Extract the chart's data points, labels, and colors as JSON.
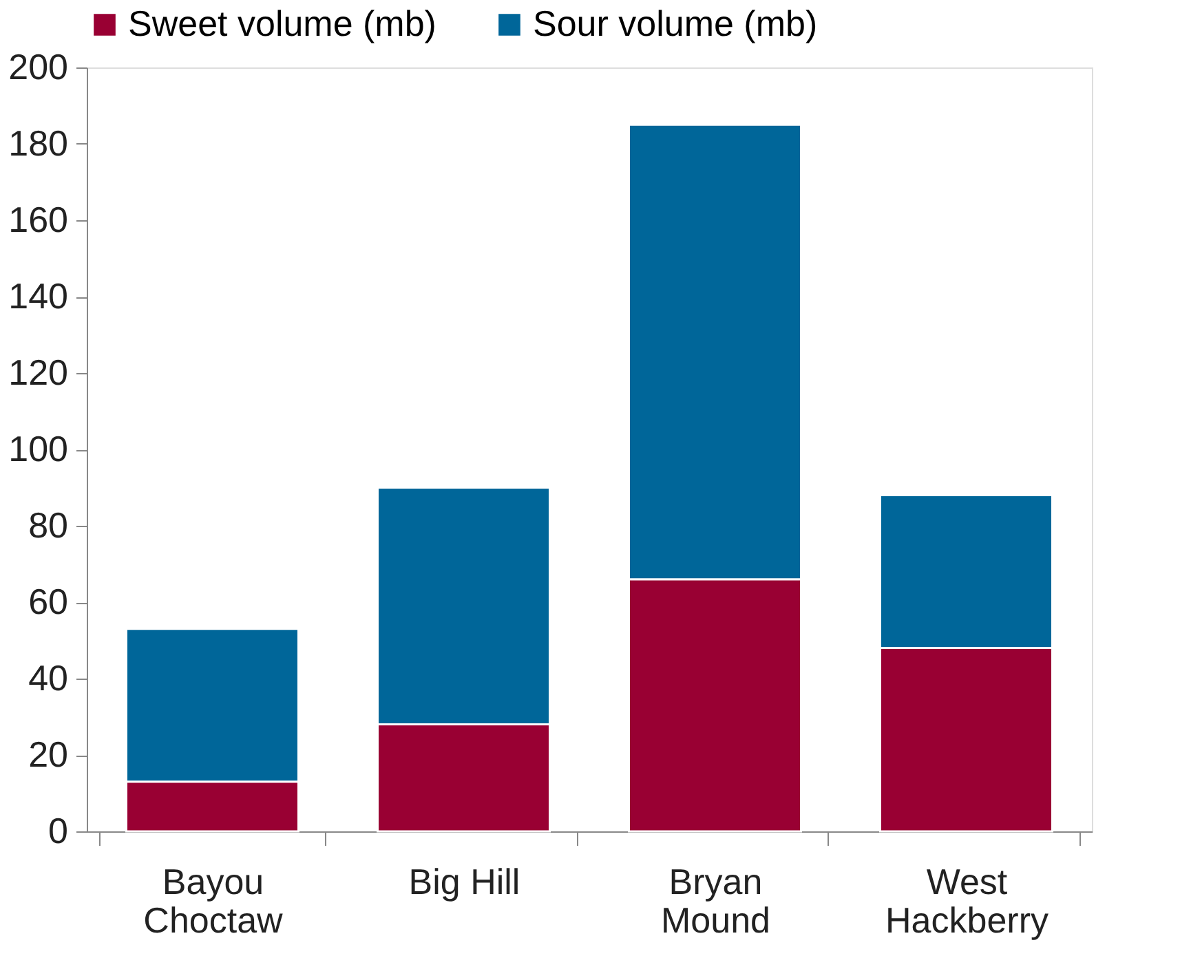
{
  "chart_data": {
    "type": "bar",
    "stacked": true,
    "categories": [
      "Bayou Choctaw",
      "Big Hill",
      "Bryan Mound",
      "West Hackberry"
    ],
    "series": [
      {
        "name": "Sweet volume (mb)",
        "color": "#990033",
        "values": [
          13,
          28,
          66,
          48
        ]
      },
      {
        "name": "Sour volume (mb)",
        "color": "#006699",
        "values": [
          40,
          62,
          119,
          40
        ]
      }
    ],
    "ylim": [
      0,
      200
    ],
    "yticks": [
      0,
      20,
      40,
      60,
      80,
      100,
      120,
      140,
      160,
      180,
      200
    ],
    "grid": false,
    "legend": "top"
  }
}
